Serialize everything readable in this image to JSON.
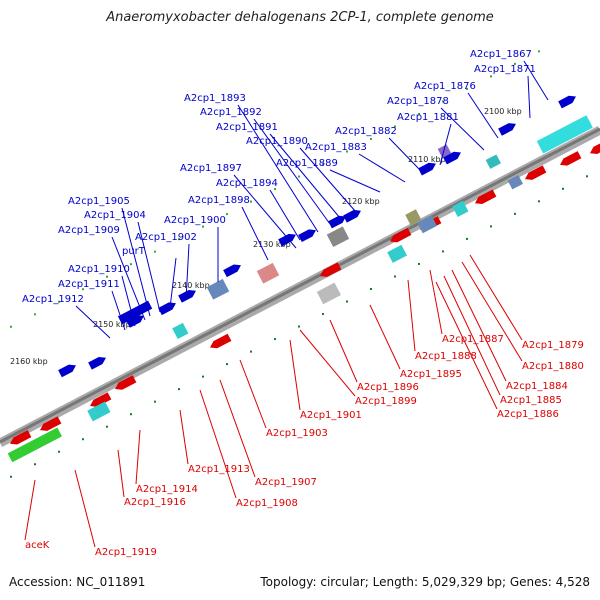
{
  "title": "Anaeromyxobacter dehalogenans 2CP-1, complete genome",
  "accession": "Accession: NC_011891",
  "summary": "Topology: circular; Length: 5,029,329 bp; Genes: 4,528",
  "colors": {
    "forward": "#0000cc",
    "reverse": "#dd0000",
    "backbone": "#888888"
  },
  "ticks": [
    "2100 kbp",
    "2110 kbp",
    "2120 kbp",
    "2130 kbp",
    "2140 kbp",
    "2150 kbp",
    "2160 kbp"
  ],
  "forward_labels": [
    "A2cp1_1867",
    "A2cp1_1871",
    "A2cp1_1876",
    "A2cp1_1878",
    "A2cp1_1881",
    "A2cp1_1882",
    "A2cp1_1883",
    "A2cp1_1889",
    "A2cp1_1890",
    "A2cp1_1891",
    "A2cp1_1892",
    "A2cp1_1893",
    "A2cp1_1894",
    "A2cp1_1897",
    "A2cp1_1898",
    "A2cp1_1900",
    "A2cp1_1902",
    "purT",
    "A2cp1_1904",
    "A2cp1_1905",
    "A2cp1_1909",
    "A2cp1_1910",
    "A2cp1_1911",
    "A2cp1_1912"
  ],
  "reverse_labels": [
    "A2cp1_1879",
    "A2cp1_1880",
    "A2cp1_1884",
    "A2cp1_1885",
    "A2cp1_1886",
    "A2cp1_1887",
    "A2cp1_1888",
    "A2cp1_1895",
    "A2cp1_1896",
    "A2cp1_1899",
    "A2cp1_1901",
    "A2cp1_1903",
    "A2cp1_1907",
    "A2cp1_1908",
    "A2cp1_1913",
    "A2cp1_1914",
    "A2cp1_1916",
    "A2cp1_1919",
    "aceK"
  ]
}
